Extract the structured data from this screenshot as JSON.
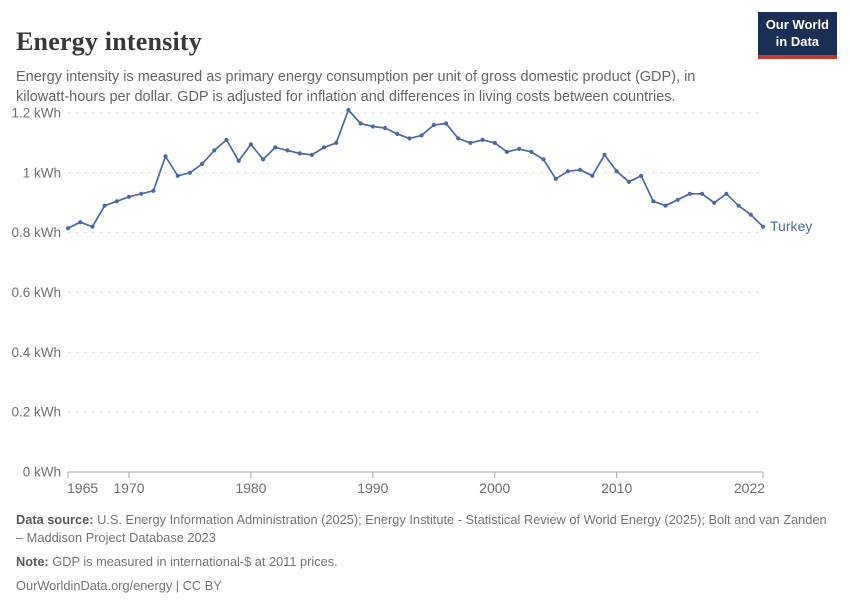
{
  "header": {
    "title": "Energy intensity",
    "subtitle": "Energy intensity is measured as primary energy consumption per unit of gross domestic product (GDP), in kilowatt-hours per dollar. GDP is adjusted for inflation and differences in living costs between countries.",
    "logo": {
      "line1": "Our World",
      "line2": "in Data"
    }
  },
  "chart_data": {
    "type": "line",
    "title": "Energy intensity",
    "unit": "kWh per dollar",
    "grid": "horizontal-dashed",
    "legend_position": "end-of-line-label",
    "ylim": [
      0,
      1.2
    ],
    "yticks": [
      {
        "value": 0,
        "label": "0 kWh"
      },
      {
        "value": 0.2,
        "label": "0.2 kWh"
      },
      {
        "value": 0.4,
        "label": "0.4 kWh"
      },
      {
        "value": 0.6,
        "label": "0.6 kWh"
      },
      {
        "value": 0.8,
        "label": "0.8 kWh"
      },
      {
        "value": 1,
        "label": "1 kWh"
      },
      {
        "value": 1.2,
        "label": "1.2 kWh"
      }
    ],
    "xticks": [
      1965,
      1970,
      1980,
      1990,
      2000,
      2010,
      2022
    ],
    "x": [
      1965,
      1966,
      1967,
      1968,
      1969,
      1970,
      1971,
      1972,
      1973,
      1974,
      1975,
      1976,
      1977,
      1978,
      1979,
      1980,
      1981,
      1982,
      1983,
      1984,
      1985,
      1986,
      1987,
      1988,
      1989,
      1990,
      1991,
      1992,
      1993,
      1994,
      1995,
      1996,
      1997,
      1998,
      1999,
      2000,
      2001,
      2002,
      2003,
      2004,
      2005,
      2006,
      2007,
      2008,
      2009,
      2010,
      2011,
      2012,
      2013,
      2014,
      2015,
      2016,
      2017,
      2018,
      2019,
      2020,
      2021,
      2022
    ],
    "series": [
      {
        "name": "Turkey",
        "color": "#4a69a8",
        "values": [
          0.815,
          0.835,
          0.82,
          0.89,
          0.905,
          0.92,
          0.93,
          0.94,
          1.055,
          0.99,
          1.0,
          1.03,
          1.075,
          1.11,
          1.04,
          1.095,
          1.045,
          1.085,
          1.075,
          1.065,
          1.06,
          1.085,
          1.1,
          1.21,
          1.165,
          1.155,
          1.15,
          1.13,
          1.115,
          1.125,
          1.16,
          1.165,
          1.115,
          1.1,
          1.11,
          1.1,
          1.07,
          1.08,
          1.07,
          1.045,
          0.98,
          1.005,
          1.01,
          0.99,
          1.06,
          1.005,
          0.97,
          0.99,
          0.905,
          0.89,
          0.91,
          0.93,
          0.93,
          0.9,
          0.93,
          0.89,
          0.86,
          0.82
        ]
      }
    ]
  },
  "footer": {
    "data_source_label": "Data source:",
    "data_source_text": " U.S. Energy Information Administration (2025); Energy Institute - Statistical Review of World Energy (2025); Bolt and van Zanden – Maddison Project Database 2023",
    "note_label": "Note:",
    "note_text": " GDP is measured in international-$ at 2011 prices.",
    "license": "OurWorldinData.org/energy | CC BY"
  },
  "colors": {
    "accent_line": "#4a69a8",
    "logo_bg": "#1b2e53",
    "logo_stripe": "#c0392b",
    "gridline": "#dedede",
    "axis": "#a8a8a8",
    "tick_text": "#707070"
  }
}
